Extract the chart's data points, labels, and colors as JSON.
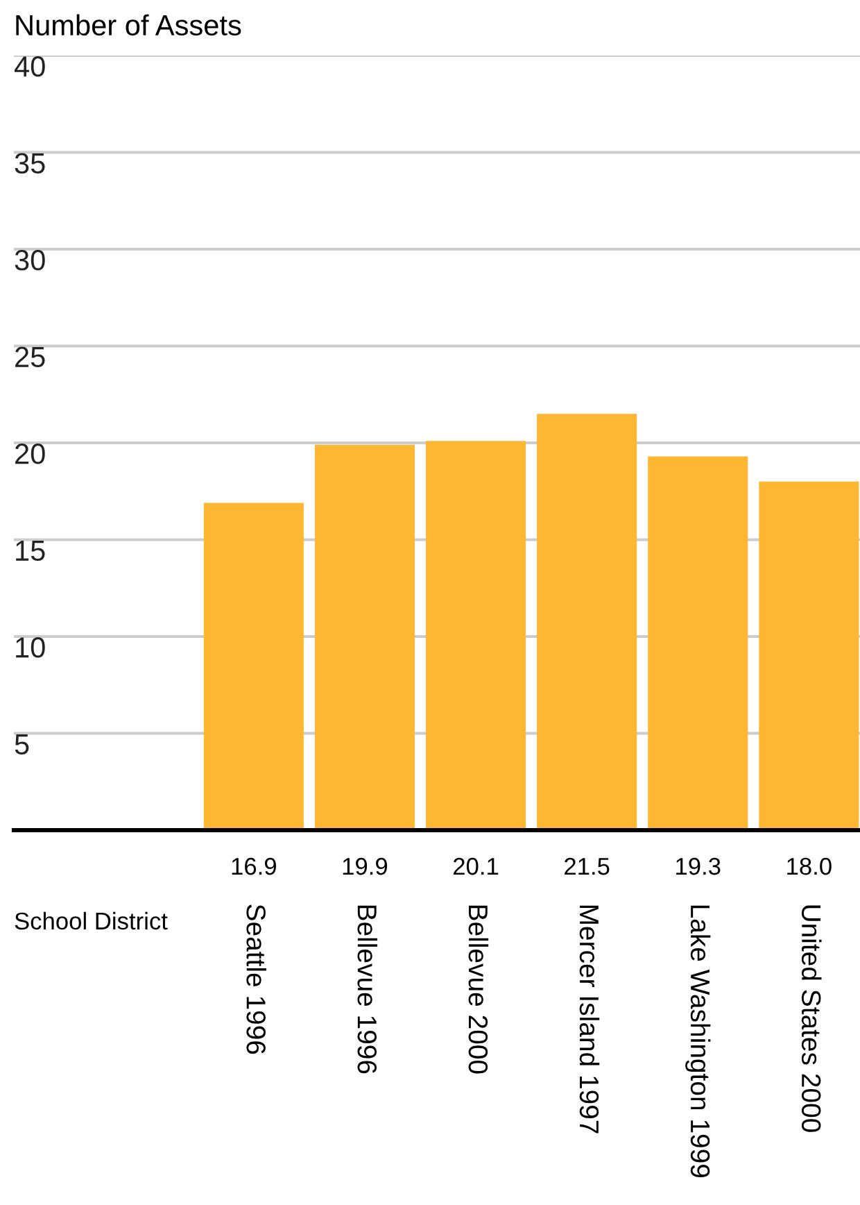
{
  "chart_data": {
    "type": "bar",
    "title": "Number of Assets",
    "xlabel": "School District",
    "categories": [
      "Seattle 1996",
      "Bellevue 1996",
      "Bellevue 2000",
      "Mercer Island 1997",
      "Lake Washington 1999",
      "United States 2000"
    ],
    "values": [
      16.9,
      19.9,
      20.1,
      21.5,
      19.3,
      18.0
    ],
    "color": "#fdb733",
    "value_labels": [
      "16.9",
      "19.9",
      "20.1",
      "21.5",
      "19.3",
      "18.0"
    ],
    "ylim": [
      0,
      40
    ],
    "yticks": [
      5,
      10,
      15,
      20,
      25,
      30,
      35,
      40
    ],
    "grid": "y",
    "legend": false
  }
}
